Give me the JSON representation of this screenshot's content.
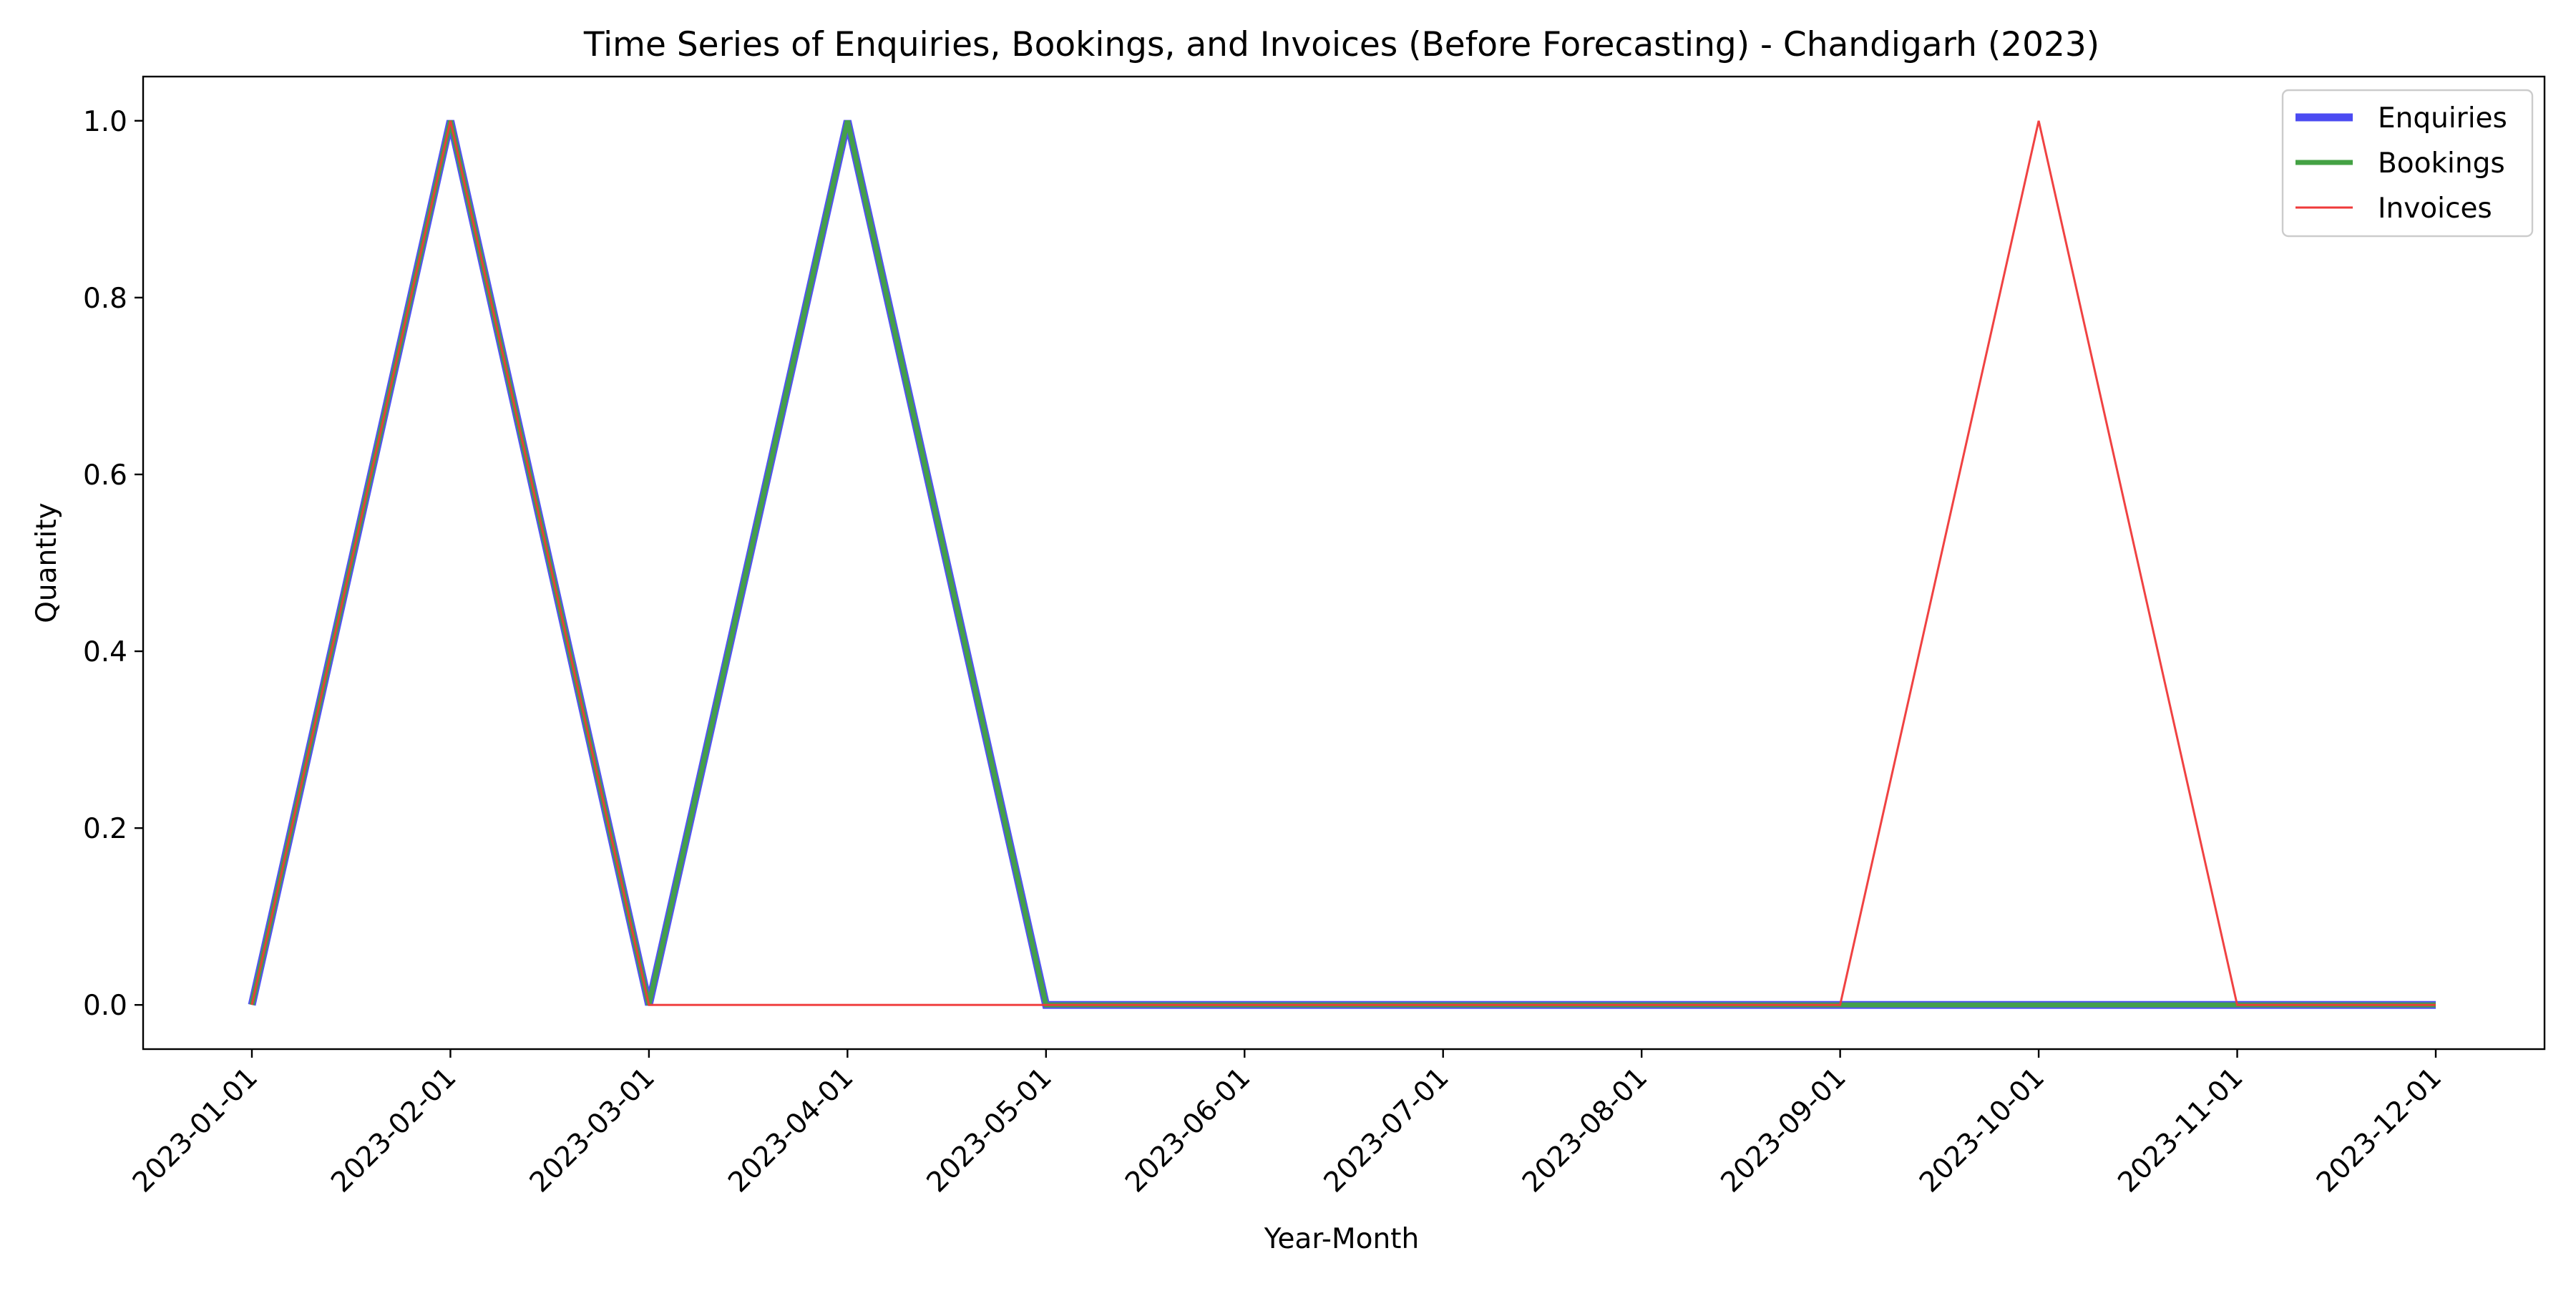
{
  "chart_data": {
    "type": "line",
    "title": "Time Series of Enquiries, Bookings, and Invoices (Before Forecasting) - Chandigarh (2023)",
    "xlabel": "Year-Month",
    "ylabel": "Quantity",
    "x": [
      "2023-01-01",
      "2023-02-01",
      "2023-03-01",
      "2023-04-01",
      "2023-05-01",
      "2023-06-01",
      "2023-07-01",
      "2023-08-01",
      "2023-09-01",
      "2023-10-01",
      "2023-11-01",
      "2023-12-01"
    ],
    "yticks": [
      "0.0",
      "0.2",
      "0.4",
      "0.6",
      "0.8",
      "1.0"
    ],
    "ylim": [
      -0.05,
      1.05
    ],
    "grid": false,
    "legend_position": "top-right",
    "series": [
      {
        "name": "Enquiries",
        "color": "#4b4bf2",
        "values": [
          0,
          1,
          0,
          1,
          0,
          0,
          0,
          0,
          0,
          0,
          0,
          0
        ]
      },
      {
        "name": "Bookings",
        "color": "#44a244",
        "values": [
          0,
          1,
          0,
          1,
          0,
          0,
          0,
          0,
          0,
          0,
          0,
          0
        ]
      },
      {
        "name": "Invoices",
        "color": "#ef3a3a",
        "values": [
          0,
          1,
          0,
          0,
          0,
          0,
          0,
          0,
          0,
          1,
          0,
          0
        ]
      }
    ]
  }
}
